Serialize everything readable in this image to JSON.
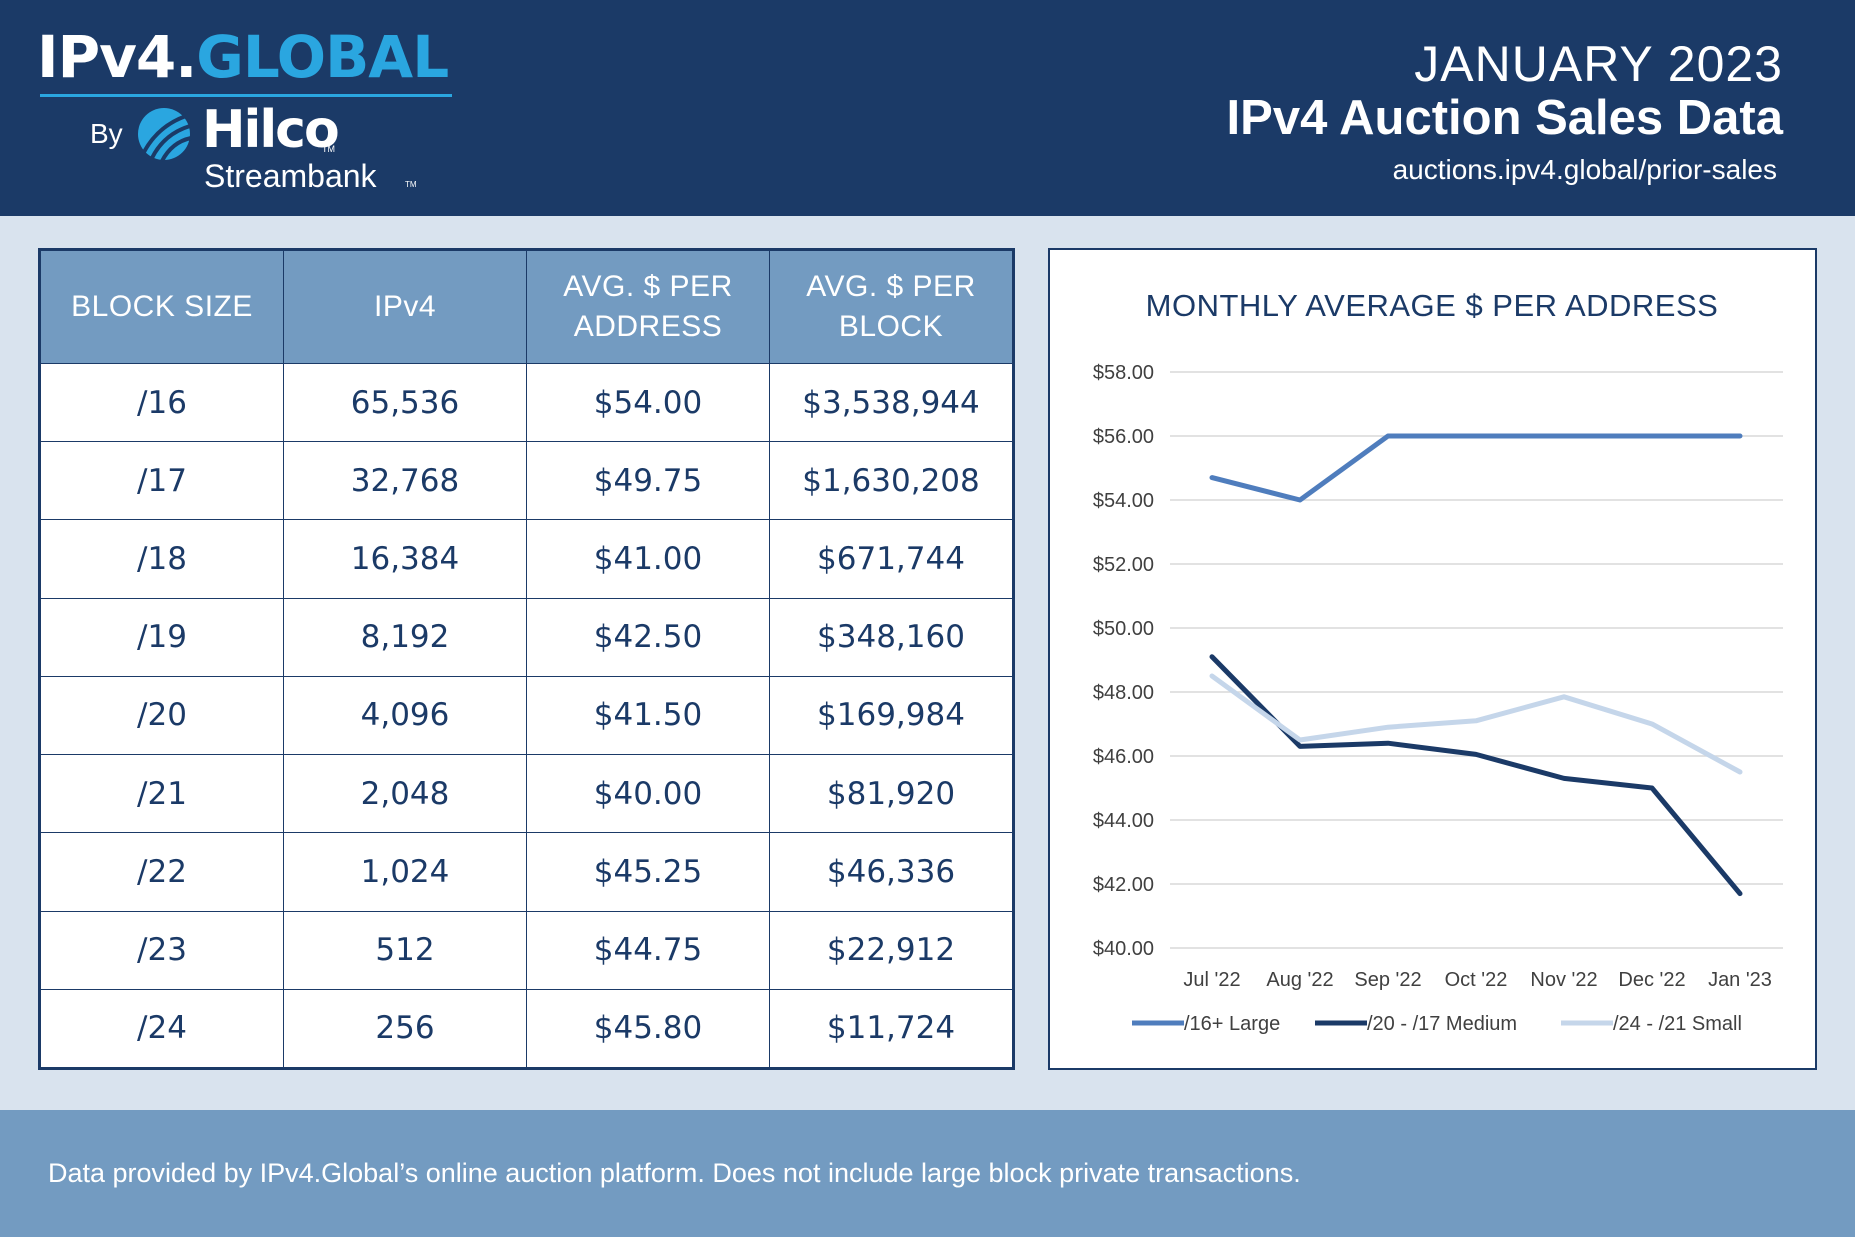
{
  "header": {
    "logo_part1": "IPv4.",
    "logo_part2": "GLOBAL",
    "logo_by": "By",
    "logo_hilco": "Hilco",
    "logo_streambank": "Streambank",
    "tm": "TM",
    "month": "JANUARY 2023",
    "title": "IPv4 Auction Sales Data",
    "url": "auctions.ipv4.global/prior-sales"
  },
  "table": {
    "headers": [
      "BLOCK SIZE",
      "IPv4",
      "AVG. $ PER ADDRESS",
      "AVG. $ PER BLOCK"
    ],
    "rows": [
      [
        "/16",
        "65,536",
        "$54.00",
        "$3,538,944"
      ],
      [
        "/17",
        "32,768",
        "$49.75",
        "$1,630,208"
      ],
      [
        "/18",
        "16,384",
        "$41.00",
        "$671,744"
      ],
      [
        "/19",
        "8,192",
        "$42.50",
        "$348,160"
      ],
      [
        "/20",
        "4,096",
        "$41.50",
        "$169,984"
      ],
      [
        "/21",
        "2,048",
        "$40.00",
        "$81,920"
      ],
      [
        "/22",
        "1,024",
        "$45.25",
        "$46,336"
      ],
      [
        "/23",
        "512",
        "$44.75",
        "$22,912"
      ],
      [
        "/24",
        "256",
        "$45.80",
        "$11,724"
      ]
    ]
  },
  "chart_data": {
    "type": "line",
    "title": "MONTHLY AVERAGE $ PER ADDRESS",
    "xlabel": "",
    "ylabel": "",
    "categories": [
      "Jul '22",
      "Aug '22",
      "Sep '22",
      "Oct '22",
      "Nov '22",
      "Dec '22",
      "Jan '23"
    ],
    "ylim": [
      40,
      58
    ],
    "yticks": [
      "$40.00",
      "$42.00",
      "$44.00",
      "$46.00",
      "$48.00",
      "$50.00",
      "$52.00",
      "$54.00",
      "$56.00",
      "$58.00"
    ],
    "grid": true,
    "legend": "bottom",
    "series": [
      {
        "name": "/16+ Large",
        "color": "#4f7dbd",
        "values": [
          54.7,
          54.0,
          56.0,
          56.0,
          56.0,
          56.0,
          56.0
        ]
      },
      {
        "name": "/20 - /17 Medium",
        "color": "#1b3a67",
        "values": [
          49.1,
          46.3,
          46.4,
          46.05,
          45.3,
          45.0,
          41.7
        ]
      },
      {
        "name": "/24 - /21 Small",
        "color": "#c5d6ea",
        "values": [
          48.5,
          46.5,
          46.9,
          47.1,
          47.85,
          47.0,
          45.5
        ]
      }
    ]
  },
  "footer": {
    "text": "Data provided by IPv4.Global’s online auction platform. Does not include large block private transactions."
  }
}
